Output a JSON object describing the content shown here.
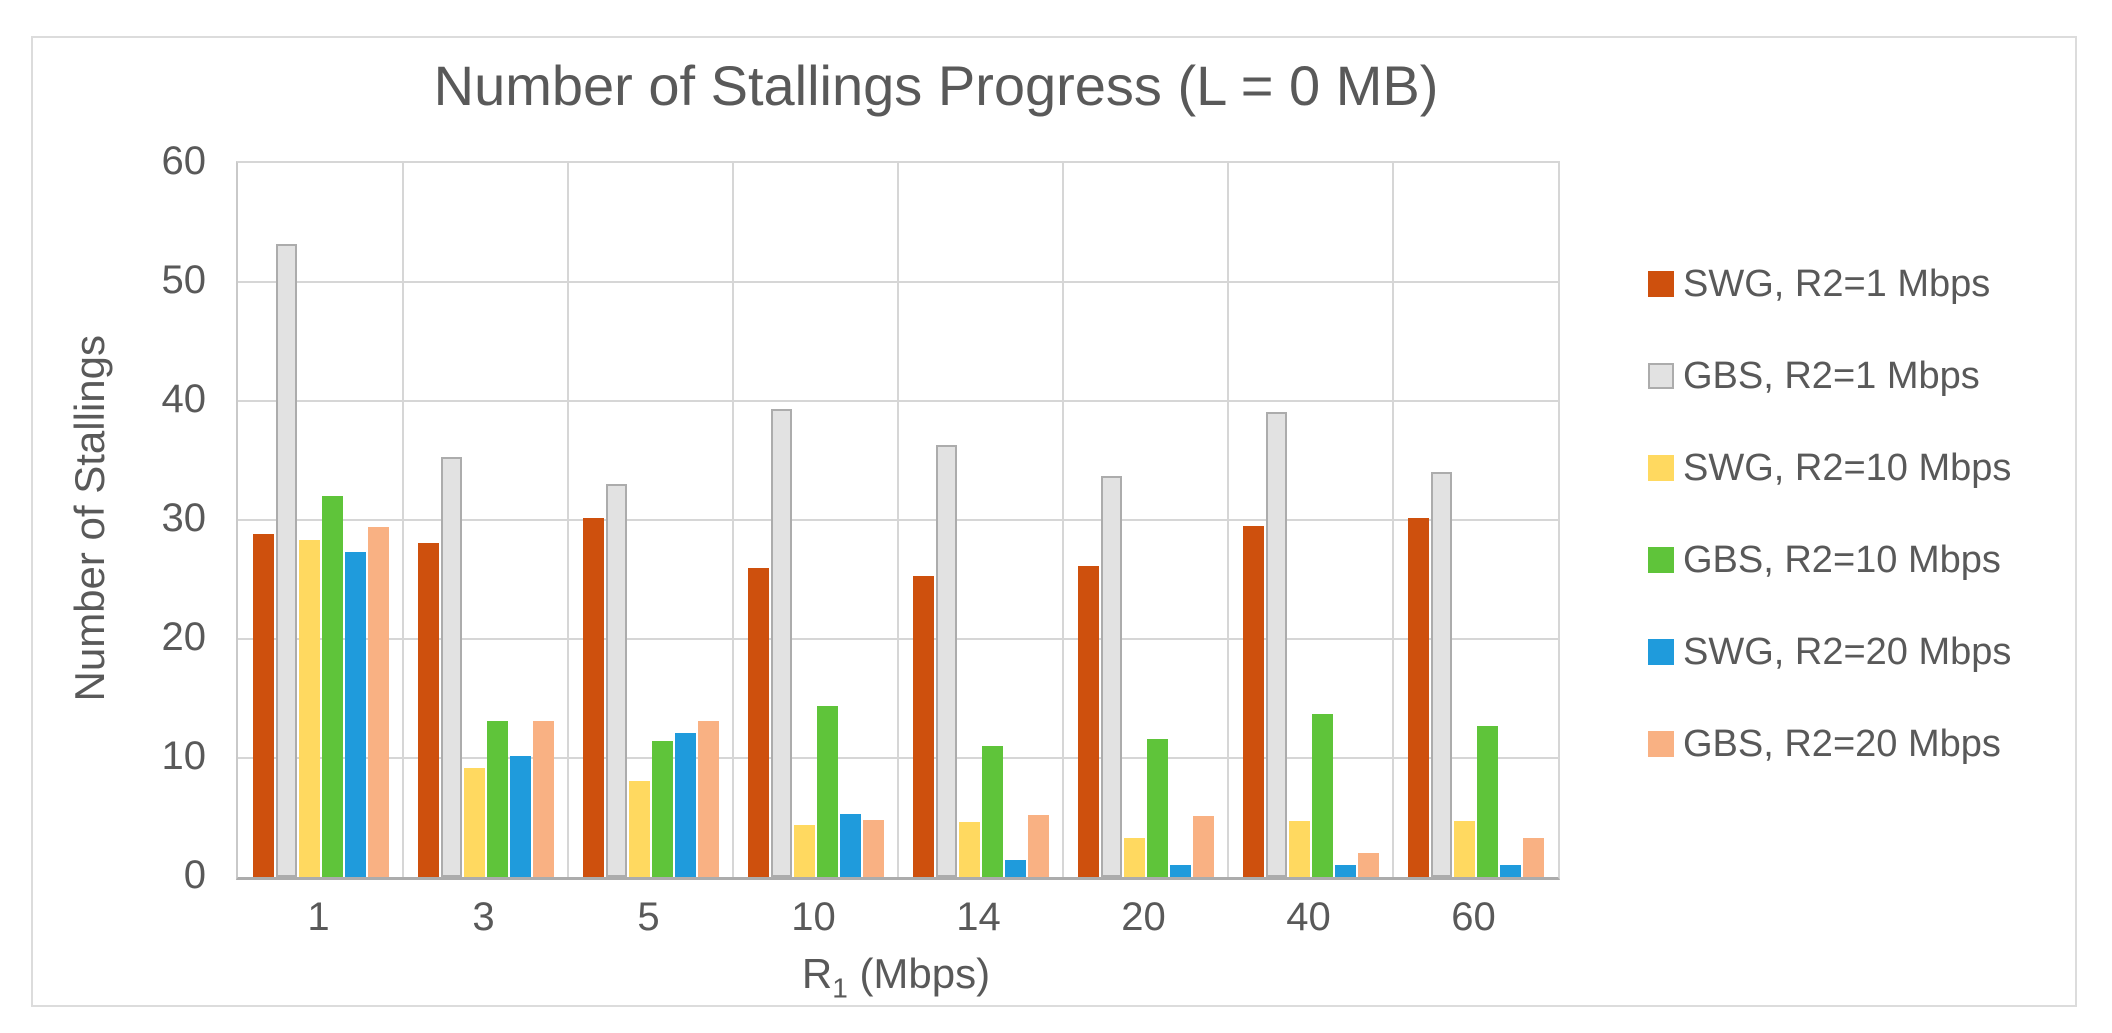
{
  "title": "Number of Stallings Progress (L = 0 MB)",
  "axes": {
    "xlabel_base": "R",
    "xlabel_sub": "1",
    "xlabel_unit": " (Mbps)"
  },
  "colors": {
    "text": "#595959",
    "gridline": "#d6d6d6",
    "axis_line": "#acacac",
    "frame_border": "#dcdcdc",
    "background": "#ffffff"
  },
  "chart_data": {
    "type": "bar",
    "title": "Number of Stallings Progress (L = 0 MB)",
    "xlabel": "R1 (Mbps)",
    "ylabel": "Number of Stallings",
    "categories": [
      "1",
      "3",
      "5",
      "10",
      "14",
      "20",
      "40",
      "60"
    ],
    "ylim": [
      0,
      60
    ],
    "yticks": [
      0,
      10,
      20,
      30,
      40,
      50,
      60
    ],
    "grid": true,
    "legend_position": "right",
    "series": [
      {
        "name": "SWG, R2=1 Mbps",
        "color": "#ce500d",
        "values": [
          28.8,
          28.1,
          30.2,
          26.0,
          25.3,
          26.1,
          29.5,
          30.2
        ]
      },
      {
        "name": "GBS, R2=1 Mbps",
        "color": "#e2e2e2",
        "border_color": "#acacac",
        "values": [
          53.2,
          35.3,
          33.0,
          39.3,
          36.3,
          33.7,
          39.1,
          34.0
        ]
      },
      {
        "name": "SWG, R2=10 Mbps",
        "color": "#ffd960",
        "values": [
          28.3,
          9.2,
          8.1,
          4.4,
          4.6,
          3.3,
          4.7,
          4.7
        ]
      },
      {
        "name": "GBS, R2=10 Mbps",
        "color": "#5fc43a",
        "values": [
          32.0,
          13.1,
          11.4,
          14.4,
          11.0,
          11.6,
          13.7,
          12.7
        ]
      },
      {
        "name": "SWG, R2=20 Mbps",
        "color": "#1f9bdc",
        "values": [
          27.3,
          10.2,
          12.1,
          5.3,
          1.4,
          1.0,
          1.0,
          1.0
        ]
      },
      {
        "name": "GBS, R2=20 Mbps",
        "color": "#f9b183",
        "values": [
          29.4,
          13.1,
          13.1,
          4.8,
          5.2,
          5.1,
          2.0,
          3.3
        ]
      }
    ]
  }
}
